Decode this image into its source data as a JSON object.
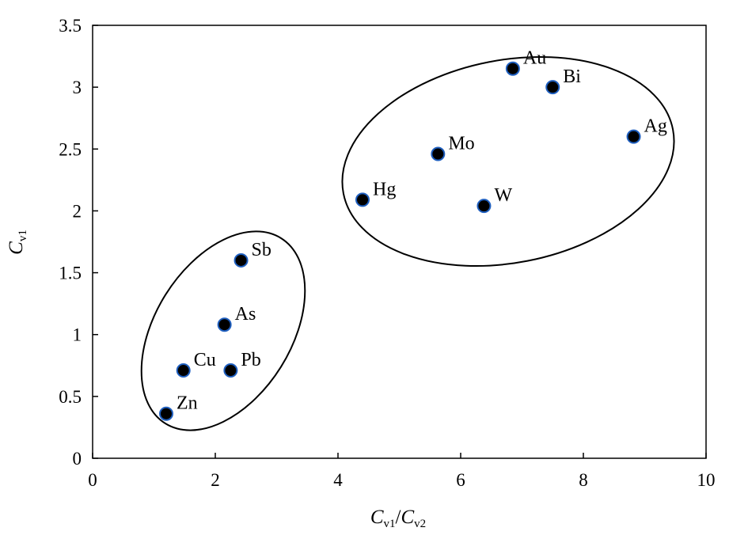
{
  "chart_data": {
    "type": "scatter",
    "title": "",
    "xlabel": {
      "main": "C",
      "sub1": "v1",
      "slash": "/",
      "main2": "C",
      "sub2": "v2"
    },
    "ylabel": {
      "main": "C",
      "sub": "v1"
    },
    "xlim": [
      0,
      10
    ],
    "ylim": [
      0,
      3.5
    ],
    "xticks": [
      0,
      2,
      4,
      6,
      8,
      10
    ],
    "xtick_labels": [
      "0",
      "2",
      "4",
      "6",
      "8",
      "10"
    ],
    "yticks": [
      0,
      0.5,
      1,
      1.5,
      2,
      2.5,
      3,
      3.5
    ],
    "ytick_labels": [
      "0",
      "0.5",
      "1",
      "1.5",
      "2",
      "2.5",
      "3",
      "3.5"
    ],
    "grid": false,
    "legend": "none",
    "marker_color": "#000000",
    "marker_edge_color": "#1f5fbf",
    "points": [
      {
        "label": "Au",
        "x": 6.85,
        "y": 3.15
      },
      {
        "label": "Bi",
        "x": 7.5,
        "y": 3.0
      },
      {
        "label": "Ag",
        "x": 8.82,
        "y": 2.6
      },
      {
        "label": "Mo",
        "x": 5.63,
        "y": 2.46
      },
      {
        "label": "Hg",
        "x": 4.4,
        "y": 2.09
      },
      {
        "label": "W",
        "x": 6.38,
        "y": 2.04
      },
      {
        "label": "Sb",
        "x": 2.42,
        "y": 1.6
      },
      {
        "label": "As",
        "x": 2.15,
        "y": 1.08
      },
      {
        "label": "Cu",
        "x": 1.48,
        "y": 0.71
      },
      {
        "label": "Pb",
        "x": 2.25,
        "y": 0.71
      },
      {
        "label": "Zn",
        "x": 1.2,
        "y": 0.36
      }
    ],
    "groups": [
      {
        "members": [
          "Au",
          "Bi",
          "Ag",
          "Mo",
          "Hg",
          "W"
        ]
      },
      {
        "members": [
          "Sb",
          "As",
          "Cu",
          "Pb",
          "Zn"
        ]
      }
    ]
  }
}
